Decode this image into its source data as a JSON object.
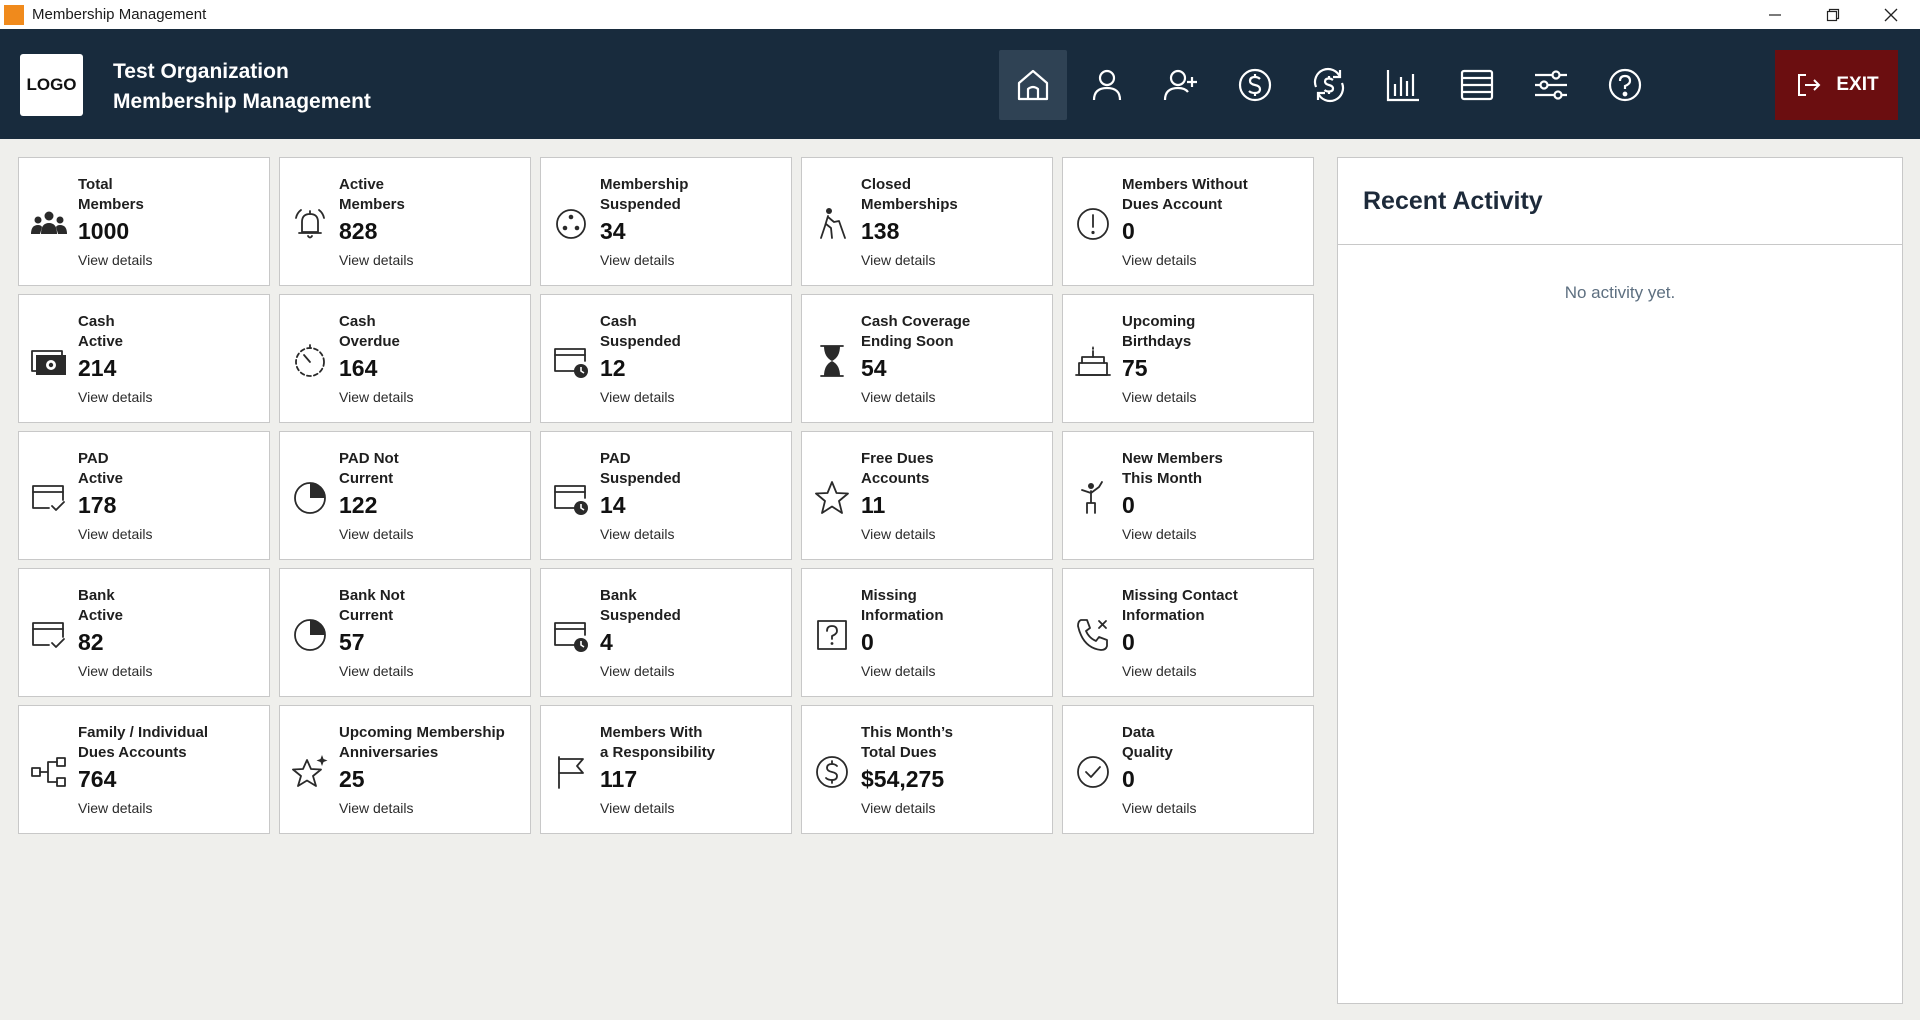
{
  "window": {
    "title": "Membership Management"
  },
  "header": {
    "logo_label": "LOGO",
    "org_name": "Test Organization",
    "app_name": "Membership Management",
    "exit_label": "EXIT",
    "nav": [
      {
        "icon": "home-icon",
        "active": true
      },
      {
        "icon": "user-icon",
        "active": false
      },
      {
        "icon": "add-user-icon",
        "active": false
      },
      {
        "icon": "dollar-icon",
        "active": false
      },
      {
        "icon": "renew-dollar-icon",
        "active": false
      },
      {
        "icon": "bar-chart-icon",
        "active": false
      },
      {
        "icon": "list-icon",
        "active": false
      },
      {
        "icon": "sliders-icon",
        "active": false
      },
      {
        "icon": "help-icon",
        "active": false
      }
    ]
  },
  "cards": [
    {
      "title": "Total\nMembers",
      "value": "1000",
      "link": "View details",
      "icon": "group-icon"
    },
    {
      "title": "Active\nMembers",
      "value": "828",
      "link": "View details",
      "icon": "bell-icon"
    },
    {
      "title": "Membership\nSuspended",
      "value": "34",
      "link": "View details",
      "icon": "dots-circle-icon"
    },
    {
      "title": "Closed\nMemberships",
      "value": "138",
      "link": "View details",
      "icon": "walking-person-icon"
    },
    {
      "title": "Members Without\nDues Account",
      "value": "0",
      "link": "View details",
      "icon": "alert-icon"
    },
    {
      "title": "Cash\nActive",
      "value": "214",
      "link": "View details",
      "icon": "cash-icon"
    },
    {
      "title": "Cash\nOverdue",
      "value": "164",
      "link": "View details",
      "icon": "timer-icon"
    },
    {
      "title": "Cash\nSuspended",
      "value": "12",
      "link": "View details",
      "icon": "card-clock-icon"
    },
    {
      "title": "Cash Coverage\nEnding Soon",
      "value": "54",
      "link": "View details",
      "icon": "hourglass-icon"
    },
    {
      "title": "Upcoming\nBirthdays",
      "value": "75",
      "link": "View details",
      "icon": "cake-icon"
    },
    {
      "title": "PAD\nActive",
      "value": "178",
      "link": "View details",
      "icon": "card-check-icon"
    },
    {
      "title": "PAD Not\nCurrent",
      "value": "122",
      "link": "View details",
      "icon": "pie-icon"
    },
    {
      "title": "PAD\nSuspended",
      "value": "14",
      "link": "View details",
      "icon": "card-clock-icon"
    },
    {
      "title": "Free Dues\nAccounts",
      "value": "11",
      "link": "View details",
      "icon": "star-icon"
    },
    {
      "title": "New Members\nThis Month",
      "value": "0",
      "link": "View details",
      "icon": "person-wave-icon"
    },
    {
      "title": "Bank\nActive",
      "value": "82",
      "link": "View details",
      "icon": "card-check-icon"
    },
    {
      "title": "Bank Not\nCurrent",
      "value": "57",
      "link": "View details",
      "icon": "pie-icon"
    },
    {
      "title": "Bank\nSuspended",
      "value": "4",
      "link": "View details",
      "icon": "card-clock-icon"
    },
    {
      "title": "Missing\nInformation",
      "value": "0",
      "link": "View details",
      "icon": "question-box-icon"
    },
    {
      "title": "Missing Contact\nInformation",
      "value": "0",
      "link": "View details",
      "icon": "phone-x-icon"
    },
    {
      "title": "Family / Individual\nDues Accounts",
      "value": "764",
      "link": "View details",
      "icon": "hierarchy-icon"
    },
    {
      "title": "Upcoming Membership\nAnniversaries",
      "value": "25",
      "link": "View details",
      "icon": "star-sparkle-icon"
    },
    {
      "title": "Members With\na Responsibility",
      "value": "117",
      "link": "View details",
      "icon": "flag-icon"
    },
    {
      "title": "This Month’s\nTotal Dues",
      "value": "$54,275",
      "link": "View details",
      "icon": "dollar-circle-icon"
    },
    {
      "title": "Data\nQuality",
      "value": "0",
      "link": "View details",
      "icon": "check-circle-icon"
    }
  ],
  "activity": {
    "title": "Recent Activity",
    "empty_text": "No activity yet."
  }
}
